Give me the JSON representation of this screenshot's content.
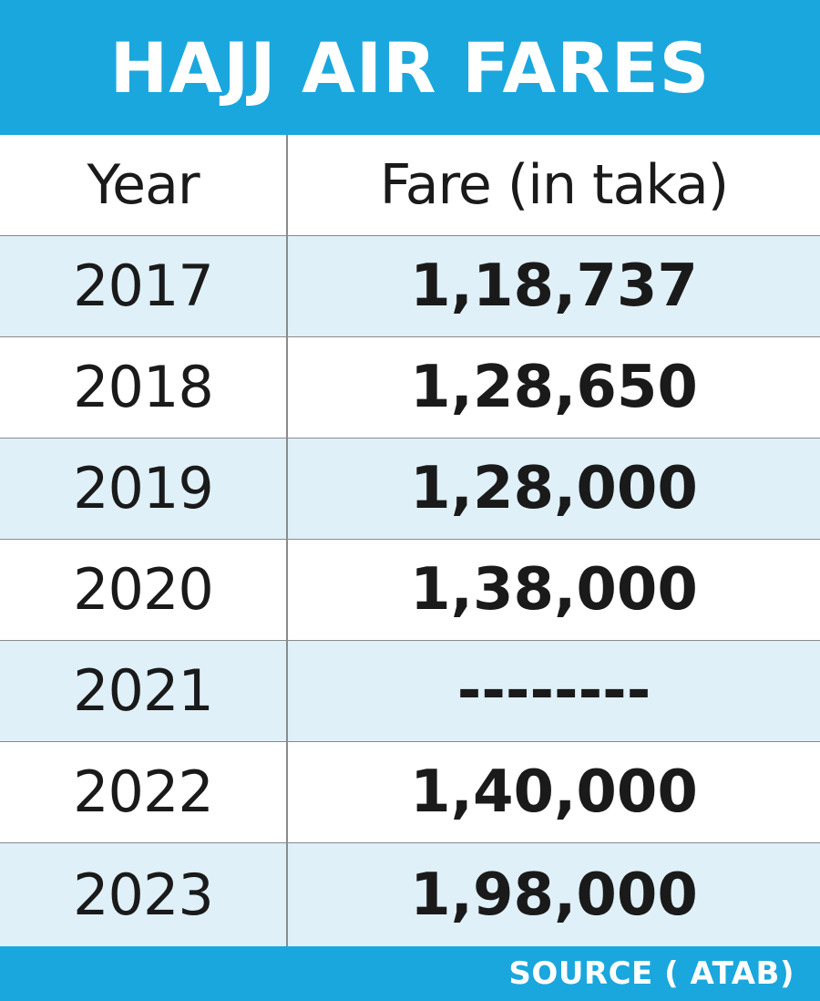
{
  "colors": {
    "banner": "#1aa7dd",
    "shaded_row": "#dff0f8",
    "text": "#1a1a1a",
    "banner_text": "#ffffff",
    "grid": "#8a8a8a"
  },
  "title": "HAJJ AIR FARES",
  "source": "SOURCE ( ATAB)",
  "chart_data": {
    "type": "table",
    "title": "HAJJ AIR FARES",
    "columns": [
      "Year",
      "Fare (in taka)"
    ],
    "rows": [
      {
        "year": "2017",
        "fare": "1,18,737"
      },
      {
        "year": "2018",
        "fare": "1,28,650"
      },
      {
        "year": "2019",
        "fare": "1,28,000"
      },
      {
        "year": "2020",
        "fare": "1,38,000"
      },
      {
        "year": "2021",
        "fare": "--------"
      },
      {
        "year": "2022",
        "fare": "1,40,000"
      },
      {
        "year": "2023",
        "fare": "1,98,000"
      }
    ],
    "source": "SOURCE ( ATAB)"
  }
}
